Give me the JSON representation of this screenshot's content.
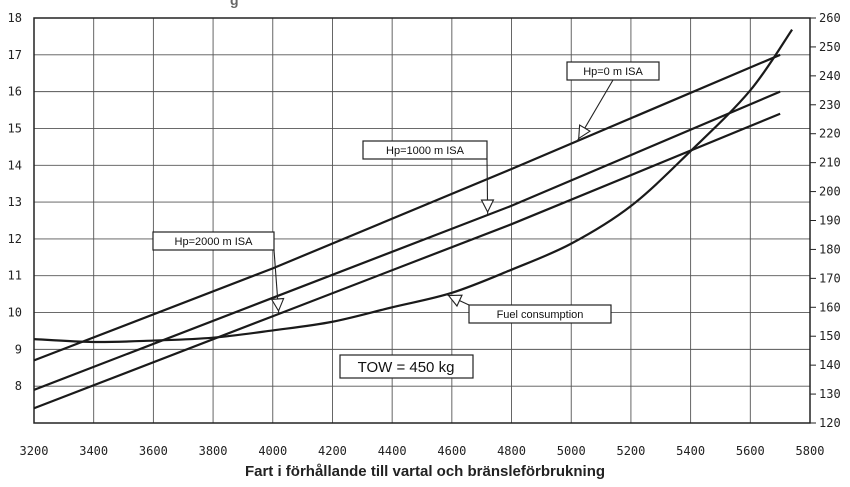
{
  "chart_data": {
    "type": "line",
    "title": "",
    "xlabel": "Fart i förhållande till vartal och bränsleförbrukning",
    "ylabel": "",
    "ylabel_right": "",
    "xlim": [
      3200,
      5800
    ],
    "ylim": [
      7,
      18
    ],
    "ylim_right": [
      120,
      260
    ],
    "x_ticks": [
      3200,
      3400,
      3600,
      3800,
      4000,
      4200,
      4400,
      4600,
      4800,
      5000,
      5200,
      5400,
      5600,
      5800
    ],
    "x_tick_labels": [
      "3200",
      "3400",
      "3600",
      "3800",
      "4000",
      "4200",
      "4400",
      "4600",
      "4800",
      "5000",
      "5200",
      "5400",
      "5600",
      "5800"
    ],
    "y_ticks": [
      8,
      9,
      10,
      11,
      12,
      13,
      14,
      15,
      16,
      17,
      18
    ],
    "y_tick_labels": [
      "8",
      "9",
      "10",
      "11",
      "12",
      "13",
      "14",
      "15",
      "16",
      "17",
      "18"
    ],
    "y_right_ticks": [
      120,
      130,
      140,
      150,
      160,
      170,
      180,
      190,
      200,
      210,
      220,
      230,
      240,
      250,
      260
    ],
    "y_right_tick_labels": [
      "120",
      "130",
      "140",
      "150",
      "160",
      "170",
      "180",
      "190",
      "200",
      "210",
      "220",
      "230",
      "240",
      "250",
      "260"
    ],
    "grid": true,
    "series": [
      {
        "name": "Hp=0 m ISA",
        "axis": "left",
        "x": [
          3200,
          4000,
          4800,
          5700
        ],
        "y": [
          8.7,
          11.2,
          13.9,
          17.0
        ]
      },
      {
        "name": "Hp=1000 m ISA",
        "axis": "left",
        "x": [
          3200,
          4000,
          4800,
          5700
        ],
        "y": [
          7.9,
          10.4,
          12.9,
          16.0
        ]
      },
      {
        "name": "Hp=2000 m ISA",
        "axis": "left",
        "x": [
          3200,
          4000,
          4800,
          5700
        ],
        "y": [
          7.4,
          9.9,
          12.4,
          15.4
        ]
      },
      {
        "name": "Fuel consumption",
        "axis": "right",
        "x": [
          3200,
          3400,
          3600,
          3800,
          4000,
          4200,
          4400,
          4600,
          4800,
          5000,
          5200,
          5400,
          5600,
          5740
        ],
        "y": [
          149,
          148,
          148.5,
          149.5,
          152,
          155,
          160,
          165,
          173,
          182,
          195,
          214,
          235,
          256
        ]
      }
    ],
    "annotations": [
      {
        "text": "Hp=0 m ISA",
        "target_series": 0,
        "target_x": 5020
      },
      {
        "text": "Hp=1000 m ISA",
        "target_series": 1,
        "target_x": 4720
      },
      {
        "text": "Hp=2000 m ISA",
        "target_series": 2,
        "target_x": 4020
      },
      {
        "text": "Fuel consumption",
        "target_series": 3,
        "target_x": 4580
      }
    ],
    "label_box": "TOW =  450 kg",
    "top_title_fragment": "g"
  }
}
